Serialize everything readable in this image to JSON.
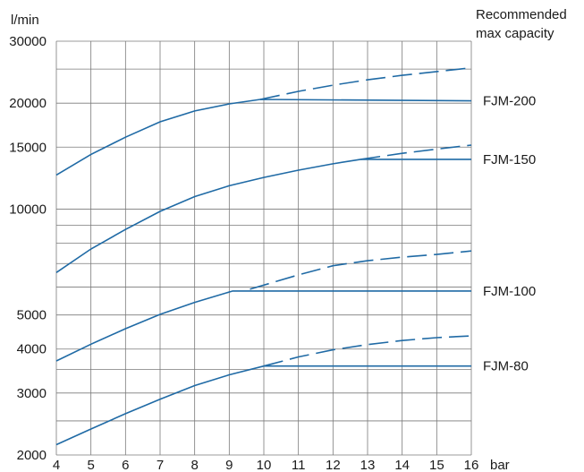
{
  "chart_data": {
    "type": "line",
    "title": "",
    "ylabel": "l/min",
    "xlabel": "bar",
    "corner_note": [
      "Recommended",
      "max capacity"
    ],
    "y_scale": "log",
    "xlim": [
      4,
      16
    ],
    "ylim": [
      2000,
      30000
    ],
    "x_ticks": [
      4,
      5,
      6,
      7,
      8,
      9,
      10,
      11,
      12,
      13,
      14,
      15,
      16
    ],
    "y_tick_labels": [
      {
        "value": 30000,
        "label": "30000"
      },
      {
        "value": 20000,
        "label": "20000"
      },
      {
        "value": 15000,
        "label": "15000"
      },
      {
        "value": 10000,
        "label": "10000"
      },
      {
        "value": 5000,
        "label": "5000"
      },
      {
        "value": 4000,
        "label": "4000"
      },
      {
        "value": 3000,
        "label": "3000"
      },
      {
        "value": 2000,
        "label": "2000"
      }
    ],
    "y_gridlines": [
      2000,
      2500,
      3000,
      3500,
      4000,
      5000,
      6000,
      7000,
      8000,
      9000,
      10000,
      15000,
      20000,
      25000,
      30000
    ],
    "grid": true,
    "line_color": "#1f6aa5",
    "series": [
      {
        "name": "FJM-200",
        "curve": [
          [
            4,
            12500
          ],
          [
            5,
            14300
          ],
          [
            6,
            16000
          ],
          [
            7,
            17700
          ],
          [
            8,
            19000
          ],
          [
            9,
            19900
          ],
          [
            9.9,
            20500
          ],
          [
            16,
            20300
          ]
        ],
        "dashed": [
          [
            9.9,
            20500
          ],
          [
            11,
            21600
          ],
          [
            12,
            22500
          ],
          [
            13,
            23300
          ],
          [
            14,
            24000
          ],
          [
            15,
            24600
          ],
          [
            16,
            25200
          ]
        ]
      },
      {
        "name": "FJM-150",
        "curve": [
          [
            4,
            6600
          ],
          [
            5,
            7700
          ],
          [
            6,
            8750
          ],
          [
            7,
            9850
          ],
          [
            8,
            10850
          ],
          [
            9,
            11650
          ],
          [
            10,
            12300
          ],
          [
            11,
            12900
          ],
          [
            12,
            13450
          ],
          [
            12.8,
            13850
          ],
          [
            16,
            13850
          ]
        ],
        "dashed": [
          [
            12.8,
            13850
          ],
          [
            14,
            14400
          ],
          [
            15,
            14800
          ],
          [
            16,
            15200
          ]
        ]
      },
      {
        "name": "FJM-100",
        "curve": [
          [
            4,
            3700
          ],
          [
            5,
            4130
          ],
          [
            6,
            4570
          ],
          [
            7,
            5020
          ],
          [
            8,
            5430
          ],
          [
            9.1,
            5850
          ],
          [
            16,
            5850
          ]
        ],
        "dashed": [
          [
            9.6,
            5920
          ],
          [
            11,
            6500
          ],
          [
            12,
            6900
          ],
          [
            13,
            7130
          ],
          [
            14,
            7300
          ],
          [
            15,
            7430
          ],
          [
            16,
            7600
          ]
        ]
      },
      {
        "name": "FJM-80",
        "curve": [
          [
            4,
            2140
          ],
          [
            5,
            2370
          ],
          [
            6,
            2620
          ],
          [
            7,
            2880
          ],
          [
            8,
            3150
          ],
          [
            9,
            3380
          ],
          [
            10,
            3580
          ],
          [
            16,
            3580
          ]
        ],
        "dashed": [
          [
            10,
            3580
          ],
          [
            11,
            3800
          ],
          [
            12,
            3980
          ],
          [
            13,
            4120
          ],
          [
            14,
            4230
          ],
          [
            15,
            4310
          ],
          [
            16,
            4360
          ]
        ]
      }
    ]
  }
}
